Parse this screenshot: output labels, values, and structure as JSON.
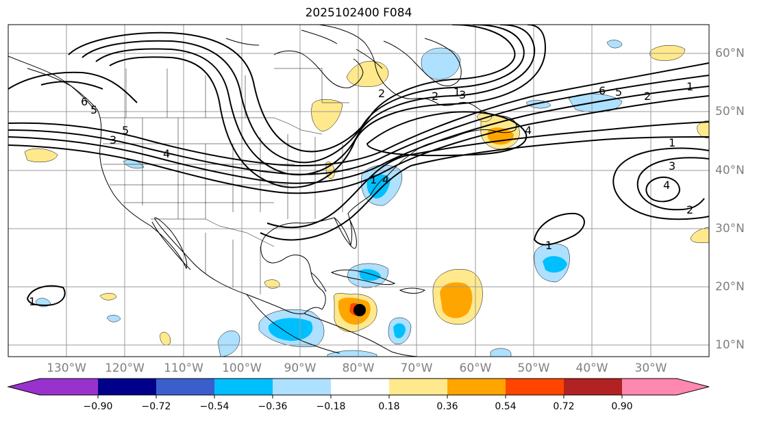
{
  "title": "2025102400 F084",
  "colors": {
    "colorbar": [
      "#9932cc",
      "#00008b",
      "#3a5fcd",
      "#00bfff",
      "#aee0ff",
      "#ffffff",
      "#ffe98c",
      "#ffa500",
      "#ff4500",
      "#b22222",
      "#ff88b0"
    ],
    "land_outline": "#000000",
    "grid": "#999999"
  },
  "longitude_labels": [
    "130°W",
    "120°W",
    "110°W",
    "100°W",
    "90°W",
    "80°W",
    "70°W",
    "60°W",
    "50°W",
    "40°W",
    "30°W"
  ],
  "latitude_labels": [
    "60°N",
    "50°N",
    "40°N",
    "30°N",
    "20°N",
    "10°N"
  ],
  "colorbar": {
    "extend": "both",
    "ticks": [
      "−0.90",
      "−0.72",
      "−0.54",
      "−0.36",
      "−0.18",
      "0.18",
      "0.36",
      "0.54",
      "0.72",
      "0.90"
    ]
  },
  "contour_labels": [
    "6",
    "5",
    "4",
    "3",
    "2",
    "1",
    "4",
    "3",
    "2",
    "1",
    "6",
    "5",
    "2",
    "1",
    "1",
    "3",
    "4",
    "2",
    "1",
    "1",
    "5",
    "4"
  ],
  "storm_marker": {
    "lon": -80.0,
    "lat": 16.0
  }
}
